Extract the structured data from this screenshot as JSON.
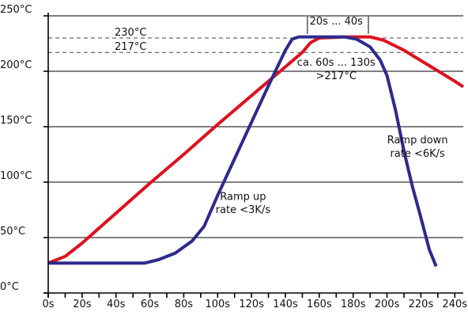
{
  "chart_data": {
    "type": "line",
    "title": "",
    "xlabel": "",
    "ylabel": "",
    "xlim": [
      0,
      245
    ],
    "ylim": [
      0,
      250
    ],
    "x_ticks": [
      0,
      20,
      40,
      60,
      80,
      100,
      120,
      140,
      160,
      180,
      200,
      220,
      240
    ],
    "x_tick_labels": [
      "0s",
      "20s",
      "40s",
      "60s",
      "80s",
      "100s",
      "120s",
      "140s",
      "160s",
      "180s",
      "200s",
      "220s",
      "240s"
    ],
    "y_ticks": [
      0,
      50,
      100,
      150,
      200,
      250
    ],
    "y_tick_labels": [
      "0°C",
      "50°C",
      "100°C",
      "150°C",
      "200°C",
      "250°C"
    ],
    "grid": "horizontal",
    "reference_lines": [
      {
        "y": 230,
        "label": "230°C"
      },
      {
        "y": 217,
        "label": "217°C"
      }
    ],
    "series": [
      {
        "color": "#e0101e",
        "points": [
          [
            0,
            27
          ],
          [
            10,
            33
          ],
          [
            20,
            45
          ],
          [
            40,
            72
          ],
          [
            60,
            99
          ],
          [
            80,
            125
          ],
          [
            100,
            152
          ],
          [
            120,
            178
          ],
          [
            140,
            204
          ],
          [
            150,
            217
          ],
          [
            155,
            226
          ],
          [
            160,
            230
          ],
          [
            175,
            231
          ],
          [
            190,
            231
          ],
          [
            198,
            228
          ],
          [
            210,
            219
          ],
          [
            225,
            205
          ],
          [
            240,
            191
          ],
          [
            245,
            186
          ]
        ]
      },
      {
        "color": "#2d2a8e",
        "points": [
          [
            0,
            27
          ],
          [
            20,
            27
          ],
          [
            40,
            27
          ],
          [
            57,
            27
          ],
          [
            65,
            30
          ],
          [
            75,
            36
          ],
          [
            85,
            47
          ],
          [
            92,
            60
          ],
          [
            100,
            88
          ],
          [
            110,
            121
          ],
          [
            120,
            154
          ],
          [
            130,
            187
          ],
          [
            140,
            219
          ],
          [
            144,
            229
          ],
          [
            148,
            231
          ],
          [
            160,
            231
          ],
          [
            175,
            231
          ],
          [
            182,
            229
          ],
          [
            190,
            222
          ],
          [
            196,
            210
          ],
          [
            200,
            196
          ],
          [
            205,
            165
          ],
          [
            210,
            128
          ],
          [
            215,
            96
          ],
          [
            220,
            68
          ],
          [
            225,
            39
          ],
          [
            229,
            24
          ]
        ]
      }
    ],
    "annotations": [
      {
        "text": "20s ... 40s",
        "x": 170,
        "y": 242
      },
      {
        "text": "ca. 60s ... 130s",
        "x": 170,
        "y": 205
      },
      {
        "text": ">217°C",
        "x": 170,
        "y": 193
      },
      {
        "text": "Ramp down",
        "x": 218,
        "y": 135
      },
      {
        "text": "rate <6K/s",
        "x": 218,
        "y": 123
      },
      {
        "text": "Ramp up",
        "x": 115,
        "y": 84
      },
      {
        "text": "rate <3K/s",
        "x": 115,
        "y": 72
      }
    ],
    "bracket": {
      "x_start": 153,
      "x_end": 189,
      "y": 238
    }
  }
}
